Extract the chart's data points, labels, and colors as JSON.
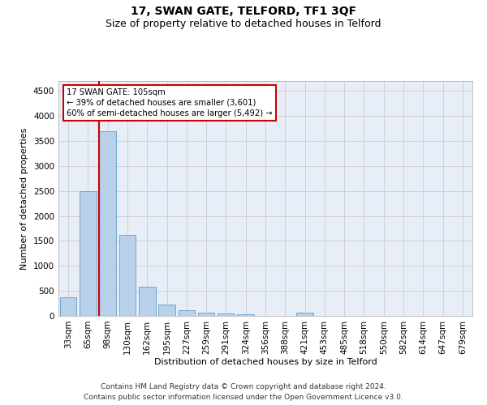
{
  "title": "17, SWAN GATE, TELFORD, TF1 3QF",
  "subtitle": "Size of property relative to detached houses in Telford",
  "xlabel": "Distribution of detached houses by size in Telford",
  "ylabel": "Number of detached properties",
  "categories": [
    "33sqm",
    "65sqm",
    "98sqm",
    "130sqm",
    "162sqm",
    "195sqm",
    "227sqm",
    "259sqm",
    "291sqm",
    "324sqm",
    "356sqm",
    "388sqm",
    "421sqm",
    "453sqm",
    "485sqm",
    "518sqm",
    "550sqm",
    "582sqm",
    "614sqm",
    "647sqm",
    "679sqm"
  ],
  "values": [
    370,
    2500,
    3700,
    1620,
    590,
    230,
    110,
    70,
    50,
    40,
    0,
    0,
    60,
    0,
    0,
    0,
    0,
    0,
    0,
    0,
    0
  ],
  "bar_color": "#b8d0ea",
  "bar_edge_color": "#6fa8d0",
  "red_line_color": "#cc0000",
  "annotation_line1": "17 SWAN GATE: 105sqm",
  "annotation_line2": "← 39% of detached houses are smaller (3,601)",
  "annotation_line3": "60% of semi-detached houses are larger (5,492) →",
  "annotation_box_color": "#cc0000",
  "ylim": [
    0,
    4700
  ],
  "yticks": [
    0,
    500,
    1000,
    1500,
    2000,
    2500,
    3000,
    3500,
    4000,
    4500
  ],
  "grid_color": "#cccccc",
  "background_color": "#e8eef8",
  "footer_line1": "Contains HM Land Registry data © Crown copyright and database right 2024.",
  "footer_line2": "Contains public sector information licensed under the Open Government Licence v3.0.",
  "title_fontsize": 10,
  "subtitle_fontsize": 9,
  "xlabel_fontsize": 8,
  "ylabel_fontsize": 8,
  "tick_fontsize": 7.5,
  "red_line_bar_index": 2
}
